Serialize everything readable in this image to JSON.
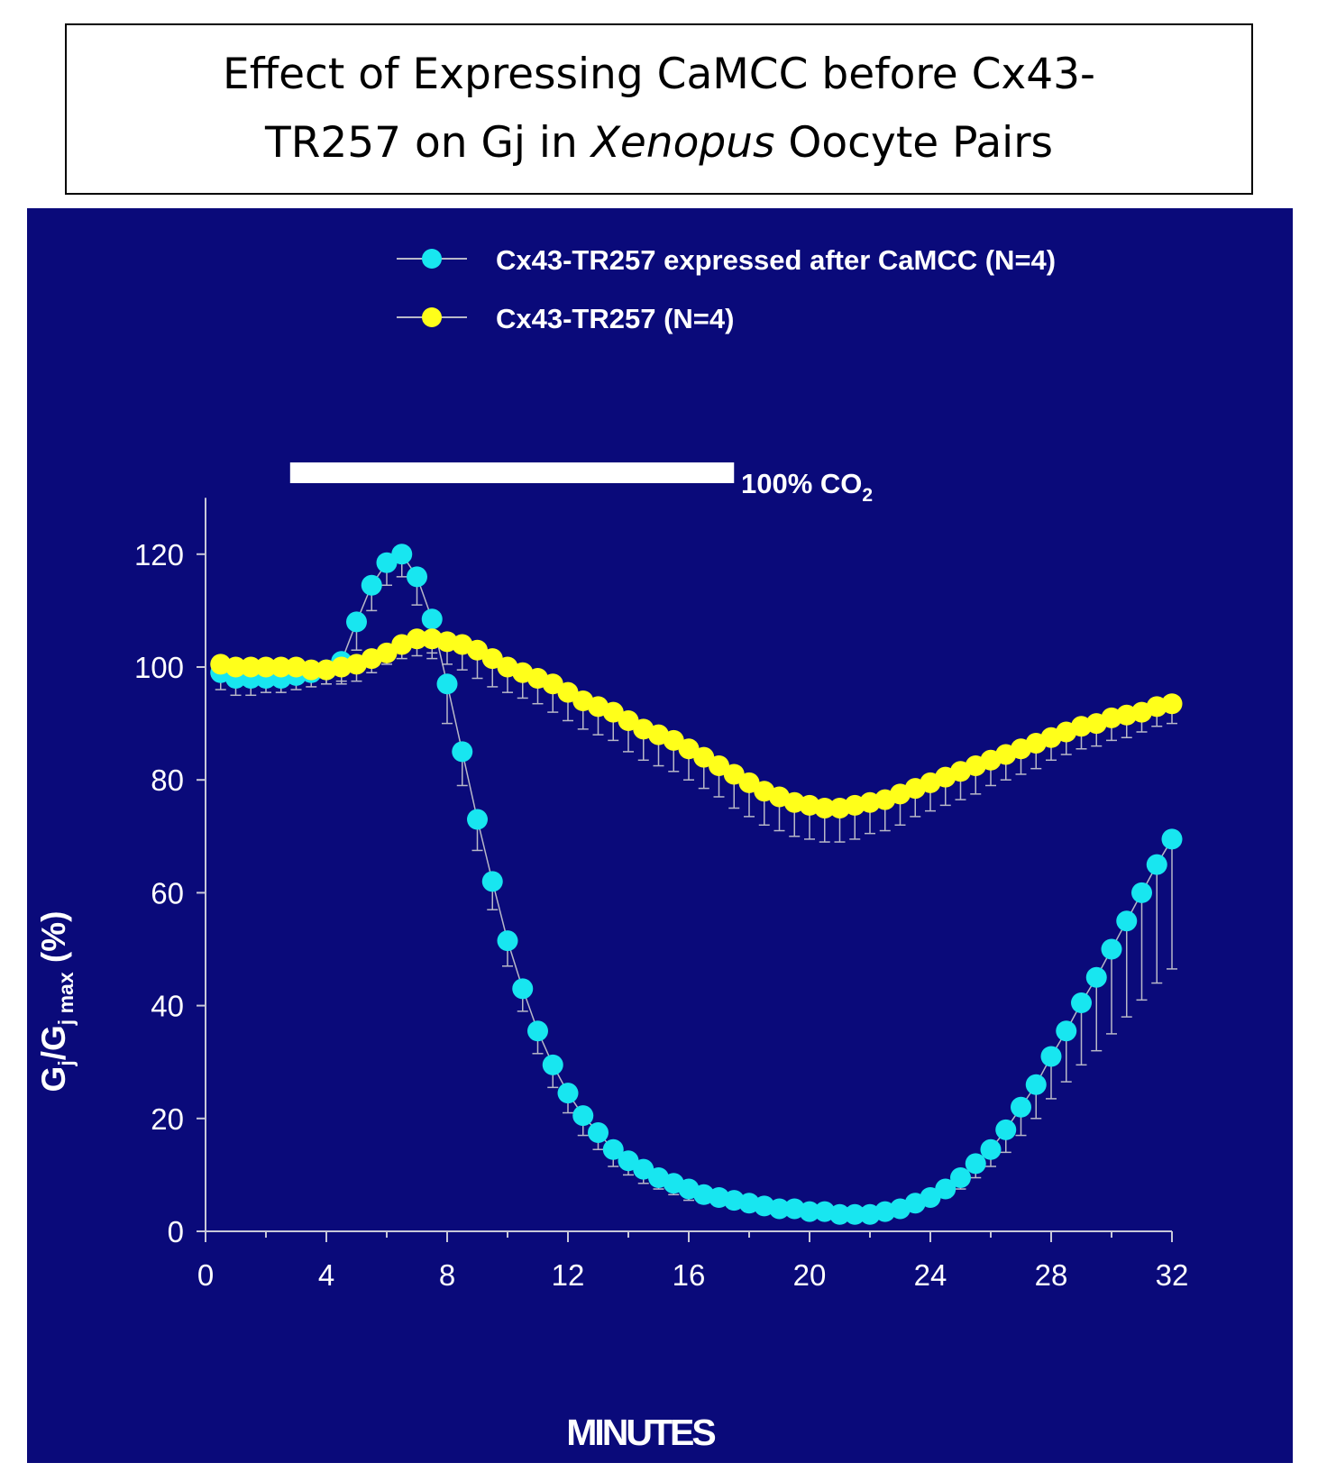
{
  "title": {
    "line1": "Effect of Expressing  CaMCC before Cx43-",
    "line2_pre": "TR257 on Gj in ",
    "line2_italic": "Xenopus",
    "line2_post": " Oocyte Pairs"
  },
  "colors": {
    "background": "#0a0a7a",
    "cyan_series": "#18e6f0",
    "yellow_series": "#ffff1a",
    "axis": "#c8c8d8",
    "text": "#ffffff",
    "connector": "#b8b8c8"
  },
  "chart_data": {
    "type": "scatter",
    "title": "Effect of Expressing  CaMCC before Cx43-TR257 on Gj in Xenopus Oocyte Pairs",
    "xlabel": "MINUTES",
    "ylabel": "Gj/Gj max (%)",
    "ylabel_parts": {
      "g1": "G",
      "sub1": "j",
      "slash": "/G",
      "sub2": "j max",
      "tail": " (%)"
    },
    "xlim": [
      0,
      32
    ],
    "ylim": [
      0,
      130
    ],
    "xticks": [
      "0",
      "4",
      "8",
      "12",
      "16",
      "20",
      "24",
      "28",
      "32"
    ],
    "xtick_values": [
      0,
      4,
      8,
      12,
      16,
      20,
      24,
      28,
      32
    ],
    "yticks": [
      "0",
      "20",
      "40",
      "60",
      "80",
      "100",
      "120"
    ],
    "ytick_values": [
      0,
      20,
      40,
      60,
      80,
      100,
      120
    ],
    "annotation": {
      "label": "100% CO",
      "subscript": "2",
      "x_start": 2.8,
      "x_end": 17.5
    },
    "error_bars": "one-sided (lower), SEM",
    "x": [
      0.5,
      1,
      1.5,
      2,
      2.5,
      3,
      3.5,
      4,
      4.5,
      5,
      5.5,
      6,
      6.5,
      7,
      7.5,
      8,
      8.5,
      9,
      9.5,
      10,
      10.5,
      11,
      11.5,
      12,
      12.5,
      13,
      13.5,
      14,
      14.5,
      15,
      15.5,
      16,
      16.5,
      17,
      17.5,
      18,
      18.5,
      19,
      19.5,
      20,
      20.5,
      21,
      21.5,
      22,
      22.5,
      23,
      23.5,
      24,
      24.5,
      25,
      25.5,
      26,
      26.5,
      27,
      27.5,
      28,
      28.5,
      29,
      29.5,
      30,
      30.5,
      31,
      31.5,
      32
    ],
    "series": [
      {
        "name": "Cx43-TR257 expressed after CaMCC (N=4)",
        "color": "#18e6f0",
        "values": [
          99,
          98,
          98,
          98,
          98,
          98.5,
          99,
          99.5,
          101,
          108,
          114.5,
          118.5,
          120,
          116,
          108.5,
          97,
          85,
          73,
          62,
          51.5,
          43,
          35.5,
          29.5,
          24.5,
          20.5,
          17.5,
          14.5,
          12.5,
          11,
          9.5,
          8.5,
          7.5,
          6.5,
          6,
          5.5,
          5,
          4.5,
          4,
          4,
          3.5,
          3.5,
          3,
          3,
          3,
          3.5,
          4,
          5,
          6,
          7.5,
          9.5,
          12,
          14.5,
          18,
          22,
          26,
          31,
          35.5,
          40.5,
          45,
          50,
          55,
          60,
          65,
          69.5
        ],
        "errors": [
          3,
          3,
          3,
          2.5,
          2.5,
          2.5,
          2.5,
          2.5,
          3.5,
          5,
          4.5,
          4,
          4,
          5,
          6,
          7,
          6,
          5.5,
          5,
          4.5,
          4,
          4,
          4,
          3.5,
          3.5,
          3,
          3,
          2.5,
          2.5,
          2,
          2,
          2,
          1.5,
          1.5,
          1.5,
          1.5,
          1,
          1,
          1,
          1,
          1,
          1,
          1,
          1,
          1,
          1,
          1,
          1,
          1.5,
          2,
          2.5,
          3,
          4,
          5,
          6,
          7.5,
          9,
          11,
          13,
          15,
          17,
          19,
          21,
          23
        ]
      },
      {
        "name": "Cx43-TR257 (N=4)",
        "color": "#ffff1a",
        "values": [
          100.5,
          100,
          100,
          100,
          100,
          100,
          99.5,
          99.5,
          100,
          100.5,
          101.5,
          102.5,
          104,
          105,
          105,
          104.5,
          104,
          103,
          101.5,
          100,
          99,
          98,
          97,
          95.5,
          94,
          93,
          92,
          90.5,
          89,
          88,
          87,
          85.5,
          84,
          82.5,
          81,
          79.5,
          78,
          77,
          76,
          75.5,
          75,
          75,
          75.5,
          76,
          76.5,
          77.5,
          78.5,
          79.5,
          80.5,
          81.5,
          82.5,
          83.5,
          84.5,
          85.5,
          86.5,
          87.5,
          88.5,
          89.5,
          90,
          91,
          91.5,
          92,
          93,
          93.5
        ],
        "errors": [
          2.5,
          3,
          3,
          2.5,
          2.5,
          2,
          2,
          2.5,
          3,
          3,
          2.5,
          2,
          2.5,
          3,
          3.5,
          4,
          4.5,
          5,
          5,
          4.5,
          4.5,
          4.5,
          5,
          5,
          5,
          5,
          5,
          5.5,
          5.5,
          5.5,
          5.5,
          5.5,
          5.5,
          5.5,
          6,
          6,
          6,
          6,
          6,
          6,
          6,
          6,
          6,
          5.5,
          5.5,
          5.5,
          5,
          5,
          5,
          5,
          5,
          4.5,
          4.5,
          4.5,
          4.5,
          4,
          4,
          4,
          4,
          4,
          4,
          3.5,
          3.5,
          3.5
        ]
      }
    ],
    "legend": [
      "Cx43-TR257 expressed after CaMCC (N=4)",
      "Cx43-TR257 (N=4)"
    ],
    "legend_position": "top-right",
    "grid": false
  }
}
